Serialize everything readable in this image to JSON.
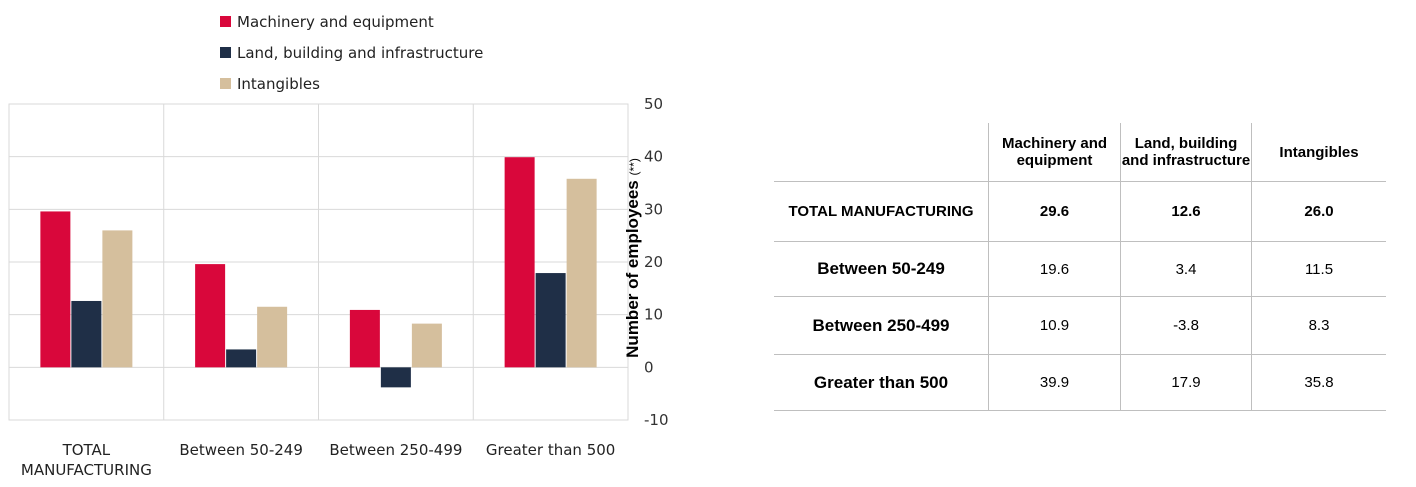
{
  "chart_data": {
    "type": "bar",
    "categories": [
      "TOTAL MANUFACTURING",
      "Between 50-249",
      "Between 250-499",
      "Greater than 500"
    ],
    "series": [
      {
        "name": "Machinery and equipment",
        "values": [
          29.6,
          19.6,
          10.9,
          39.9
        ],
        "color": "#d9073b"
      },
      {
        "name": "Land, building and infrastructure",
        "values": [
          12.6,
          3.4,
          -3.8,
          17.9
        ],
        "color": "#1f2f47"
      },
      {
        "name": "Intangibles",
        "values": [
          26.0,
          11.5,
          8.3,
          35.8
        ],
        "color": "#d5bf9d"
      }
    ],
    "ylim": [
      -10,
      50
    ],
    "yticks": [
      50,
      40,
      30,
      20,
      10,
      0,
      -10
    ],
    "ylabel": "Number of employees",
    "ylabel_note": "(**)",
    "grid": true,
    "legend_position": "top"
  },
  "table": {
    "columns": [
      "Machinery and equipment",
      "Land, building and infrastructure",
      "Intangibles"
    ],
    "rows": [
      {
        "label": "TOTAL MANUFACTURING",
        "values": [
          "29.6",
          "12.6",
          "26.0"
        ],
        "bold": true
      },
      {
        "label": "Between 50-249",
        "values": [
          "19.6",
          "3.4",
          "11.5"
        ]
      },
      {
        "label": "Between 250-499",
        "values": [
          "10.9",
          "-3.8",
          "8.3"
        ]
      },
      {
        "label": "Greater than 500",
        "values": [
          "39.9",
          "17.9",
          "35.8"
        ]
      }
    ]
  }
}
